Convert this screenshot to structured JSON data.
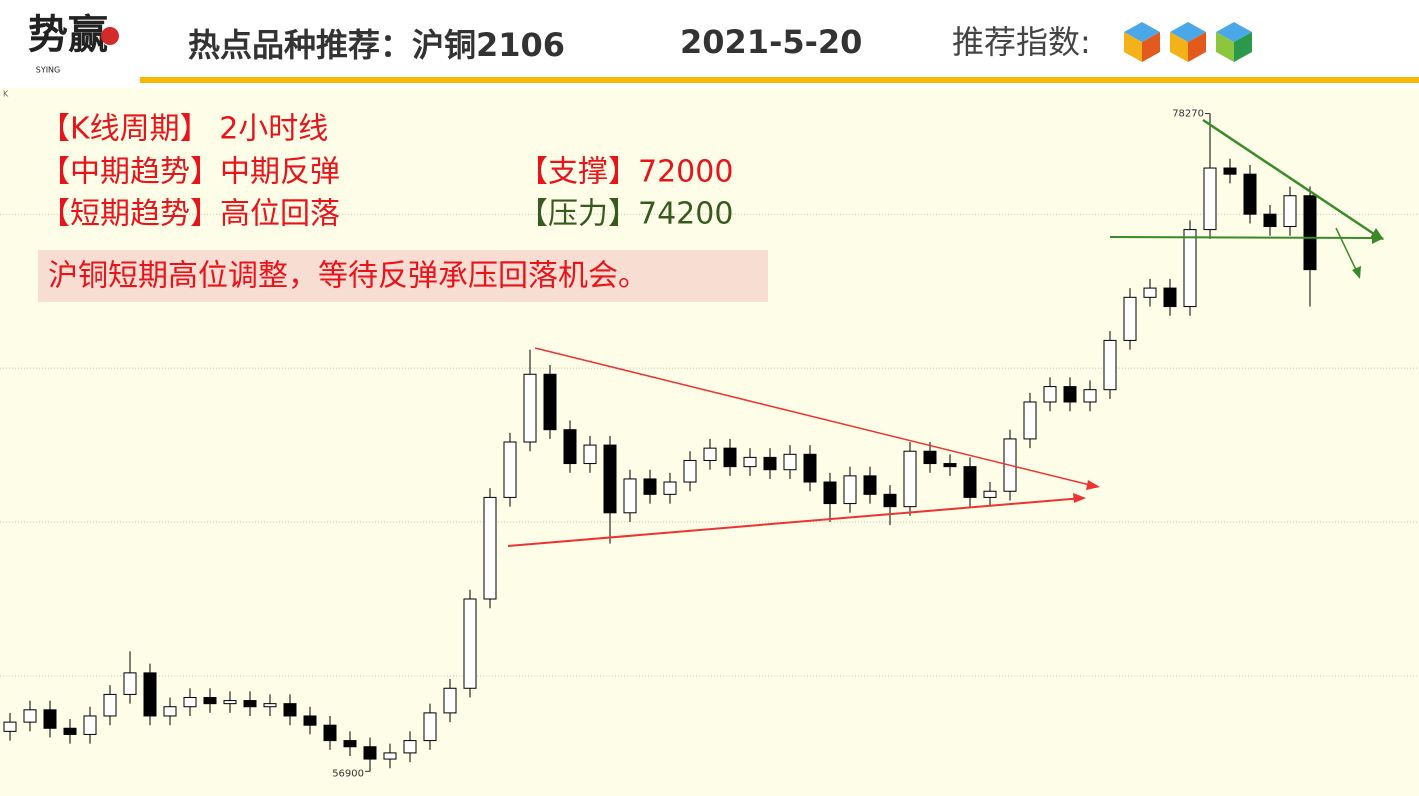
{
  "header": {
    "logo": "势赢",
    "logo_sub": "SYING",
    "title": "热点品种推荐：沪铜2106",
    "date": "2021-5-20",
    "rating_label": "推荐指数:"
  },
  "info": {
    "period": "【K线周期】 2小时线",
    "mid_trend": "【中期趋势】中期反弹",
    "short_trend": "【短期趋势】高位回落",
    "support": "【支撑】72000",
    "pressure": "【压力】74200",
    "note": "沪铜短期高位调整，等待反弹承压回落机会。"
  },
  "chart_data": {
    "type": "candlestick",
    "corner_label": "K",
    "categories": [
      null,
      null,
      null,
      null,
      null,
      null,
      null,
      null,
      null,
      null,
      null,
      null,
      null,
      null,
      null,
      null,
      null,
      null,
      null,
      null,
      null,
      null,
      null,
      null,
      null,
      null,
      null,
      null,
      null,
      null,
      null,
      null,
      null,
      null,
      null,
      null,
      null,
      null,
      null,
      null,
      null,
      null,
      null,
      null,
      null,
      null,
      null,
      null,
      null,
      null,
      null,
      null,
      null,
      null,
      null,
      null,
      null,
      null,
      null,
      null,
      null,
      null,
      null,
      null,
      null,
      null
    ],
    "open": [
      58200,
      58500,
      58900,
      58300,
      58100,
      58700,
      59400,
      60100,
      58700,
      59000,
      59300,
      59100,
      59200,
      59000,
      59100,
      58700,
      58400,
      57900,
      57700,
      57300,
      57500,
      57900,
      58800,
      59600,
      62500,
      65800,
      67600,
      69800,
      68000,
      66900,
      67500,
      65300,
      66400,
      65900,
      66300,
      67000,
      67400,
      66800,
      67100,
      66700,
      67200,
      66300,
      65600,
      66500,
      65900,
      65500,
      67300,
      66900,
      66800,
      65800,
      66000,
      67700,
      68900,
      69400,
      68900,
      69300,
      70900,
      72300,
      72600,
      72000,
      74500,
      76500,
      76300,
      75000,
      74600,
      75600
    ],
    "high": [
      58800,
      59200,
      59200,
      58600,
      59000,
      59700,
      60800,
      60400,
      59300,
      59600,
      59600,
      59500,
      59500,
      59400,
      59400,
      59000,
      58700,
      58200,
      58000,
      57800,
      58200,
      59100,
      59900,
      62800,
      66100,
      67900,
      70600,
      70100,
      68300,
      67800,
      67800,
      66700,
      66700,
      66600,
      67300,
      67700,
      67700,
      67400,
      67400,
      67500,
      67500,
      66600,
      66800,
      66800,
      66200,
      67600,
      67600,
      67200,
      67100,
      66300,
      68000,
      69200,
      69700,
      69700,
      69600,
      71200,
      72600,
      72900,
      72900,
      74800,
      78270,
      76800,
      76600,
      75300,
      75900,
      75900
    ],
    "low": [
      57900,
      58200,
      58000,
      57800,
      57800,
      58400,
      59100,
      58400,
      58400,
      58700,
      58800,
      58800,
      58700,
      58700,
      58400,
      58100,
      57600,
      57400,
      56900,
      57000,
      57200,
      57600,
      58500,
      59300,
      62200,
      65500,
      67300,
      67700,
      66600,
      66600,
      64300,
      65000,
      65600,
      65600,
      66000,
      66700,
      66500,
      66500,
      66400,
      66400,
      66000,
      65000,
      65300,
      65600,
      64900,
      65200,
      66600,
      66500,
      65500,
      65500,
      65700,
      67400,
      68600,
      68600,
      68600,
      69000,
      70600,
      72000,
      71700,
      71700,
      74200,
      76000,
      74700,
      74300,
      74300,
      72000
    ],
    "close": [
      58500,
      58900,
      58300,
      58100,
      58700,
      59400,
      60100,
      58700,
      59000,
      59300,
      59100,
      59200,
      59000,
      59100,
      58700,
      58400,
      57900,
      57700,
      57300,
      57500,
      57900,
      58800,
      59600,
      62500,
      65800,
      67600,
      69800,
      68000,
      66900,
      67500,
      65300,
      66400,
      65900,
      66300,
      67000,
      67400,
      66800,
      67100,
      66700,
      67200,
      66300,
      65600,
      66500,
      65900,
      65500,
      67300,
      66900,
      66800,
      65800,
      66000,
      67700,
      68900,
      69400,
      68900,
      69300,
      70900,
      72300,
      72600,
      72000,
      74500,
      76500,
      76300,
      75000,
      74600,
      75600,
      73200
    ],
    "annotations": [
      78270,
      56900
    ],
    "up_color": "#ffffff",
    "down_color": "#000000",
    "ylim": [
      56100,
      79100
    ],
    "yticks": [
      60000,
      65000,
      70000,
      75000
    ],
    "grid": true
  }
}
